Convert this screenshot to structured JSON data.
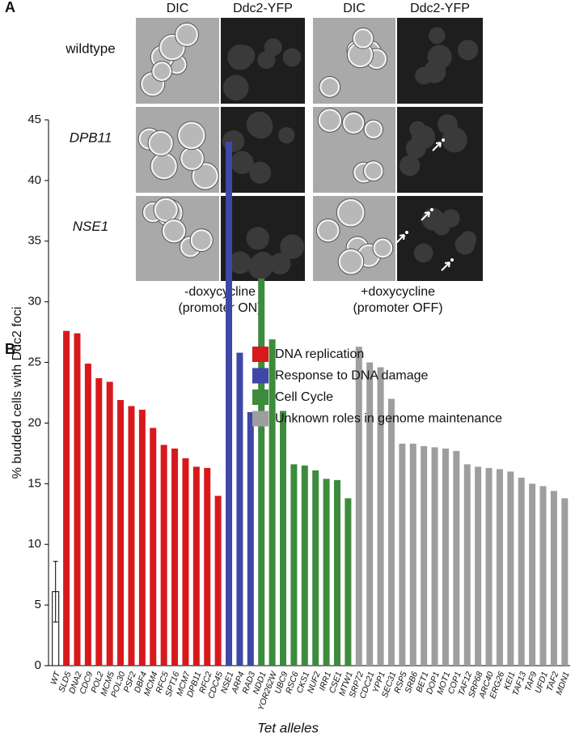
{
  "panel_a": {
    "label": "A",
    "columns": [
      "DIC",
      "Ddc2-YFP",
      "DIC",
      "Ddc2-YFP"
    ],
    "rows": [
      "wildtype",
      "DPB11",
      "NSE1"
    ],
    "conditions": [
      [
        "-doxycycline",
        "(promoter ON)"
      ],
      [
        "+doxycycline",
        "(promoter OFF)"
      ]
    ]
  },
  "chart_data": {
    "type": "bar",
    "panel_label": "B",
    "ylabel": "% budded cells with Ddc2 foci",
    "xlabel": "Tet alleles",
    "categories": [
      "WT",
      "SLD5",
      "DNA2",
      "CDC9",
      "POL2",
      "MCM5",
      "POL30",
      "PSF2",
      "DBF4",
      "MCM4",
      "RFC5",
      "SPT16",
      "MCM7",
      "DPB11",
      "RFC2",
      "CDC45",
      "NSE1",
      "ARP4",
      "RAD3",
      "NDD1",
      "YOR262W",
      "UBC9",
      "RSC6",
      "CKS1",
      "NUF2",
      "IRR1",
      "CSE1",
      "MTW1",
      "SRP72",
      "CDC21",
      "YPP1",
      "SEC31",
      "RSP5",
      "SRB6",
      "BET1",
      "DOP1",
      "MOT1",
      "COP1",
      "TAF12",
      "SRP68",
      "ARC40",
      "ERG26",
      "KEI1",
      "TAF13",
      "TAF9",
      "UFD1",
      "TAF2",
      "MDN1"
    ],
    "series": [
      {
        "color": "#ffffff",
        "values": [
          6.1,
          null,
          null,
          null,
          null,
          null,
          null,
          null,
          null,
          null,
          null,
          null,
          null,
          null,
          null,
          null,
          null,
          null,
          null,
          null,
          null,
          null,
          null,
          null,
          null,
          null,
          null,
          null,
          null,
          null,
          null,
          null,
          null,
          null,
          null,
          null,
          null,
          null,
          null,
          null,
          null,
          null,
          null,
          null,
          null,
          null,
          null,
          null
        ],
        "errors": [
          2.5,
          null,
          null,
          null,
          null,
          null,
          null,
          null,
          null,
          null,
          null,
          null,
          null,
          null,
          null,
          null,
          null,
          null,
          null,
          null,
          null,
          null,
          null,
          null,
          null,
          null,
          null,
          null,
          null,
          null,
          null,
          null,
          null,
          null,
          null,
          null,
          null,
          null,
          null,
          null,
          null,
          null,
          null,
          null,
          null,
          null,
          null,
          null
        ]
      },
      {
        "name": "DNA replication",
        "color": "#d7191c",
        "values": [
          null,
          27.6,
          27.4,
          24.9,
          23.7,
          23.4,
          21.9,
          21.4,
          21.1,
          19.6,
          18.2,
          17.9,
          17.1,
          16.4,
          16.3,
          14.0,
          null,
          null,
          null,
          null,
          null,
          null,
          null,
          null,
          null,
          null,
          null,
          null,
          null,
          null,
          null,
          null,
          null,
          null,
          null,
          null,
          null,
          null,
          null,
          null,
          null,
          null,
          null,
          null,
          null,
          null,
          null,
          null
        ]
      },
      {
        "name": "Response to DNA damage",
        "color": "#3f48a8",
        "values": [
          null,
          null,
          null,
          null,
          null,
          null,
          null,
          null,
          null,
          null,
          null,
          null,
          null,
          null,
          null,
          null,
          43.2,
          25.8,
          20.9,
          null,
          null,
          null,
          null,
          null,
          null,
          null,
          null,
          null,
          null,
          null,
          null,
          null,
          null,
          null,
          null,
          null,
          null,
          null,
          null,
          null,
          null,
          null,
          null,
          null,
          null,
          null,
          null,
          null
        ]
      },
      {
        "name": "Cell Cycle",
        "color": "#3d8b3d",
        "values": [
          null,
          null,
          null,
          null,
          null,
          null,
          null,
          null,
          null,
          null,
          null,
          null,
          null,
          null,
          null,
          null,
          null,
          null,
          null,
          31.9,
          26.9,
          21.0,
          16.6,
          16.5,
          16.1,
          15.4,
          15.3,
          13.8,
          null,
          null,
          null,
          null,
          null,
          null,
          null,
          null,
          null,
          null,
          null,
          null,
          null,
          null,
          null,
          null,
          null,
          null,
          null,
          null
        ]
      },
      {
        "name": "Unknown roles in genome maintenance",
        "color": "#9e9e9e",
        "values": [
          null,
          null,
          null,
          null,
          null,
          null,
          null,
          null,
          null,
          null,
          null,
          null,
          null,
          null,
          null,
          null,
          null,
          null,
          null,
          null,
          null,
          null,
          null,
          null,
          null,
          null,
          null,
          null,
          26.3,
          25.0,
          24.6,
          22.0,
          18.3,
          18.3,
          18.1,
          18.0,
          17.9,
          17.7,
          16.6,
          16.4,
          16.3,
          16.2,
          16.0,
          15.5,
          15.0,
          14.8,
          14.4,
          13.8
        ]
      }
    ],
    "ylim": [
      0,
      45
    ],
    "yticks": [
      0,
      5,
      10,
      15,
      20,
      25,
      30,
      35,
      40,
      45
    ],
    "legend": "top-right"
  }
}
